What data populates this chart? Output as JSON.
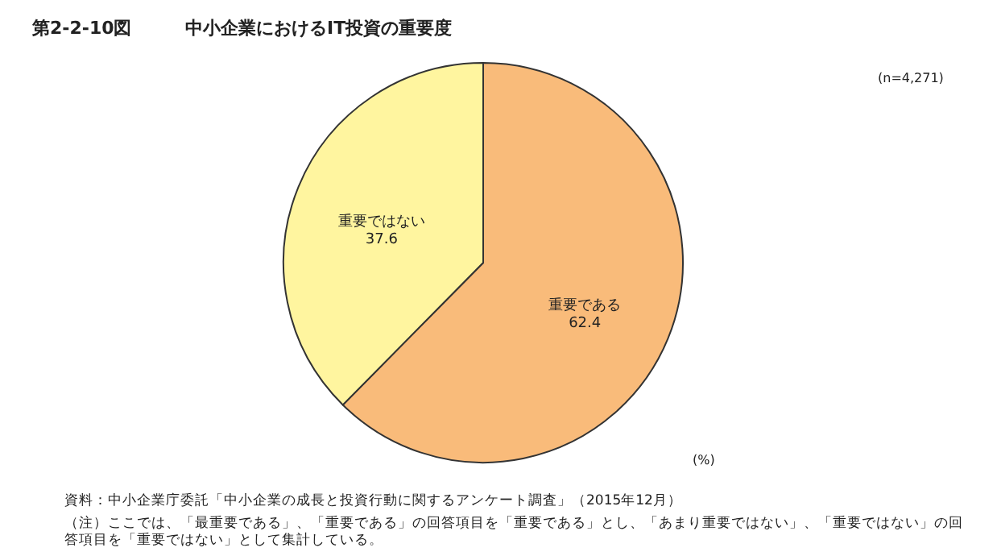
{
  "chart_data": {
    "type": "pie",
    "title": "中小企業におけるIT投資の重要度",
    "subtitle": "第2-2-10図",
    "categories": [
      "重要である",
      "重要ではない"
    ],
    "values": [
      62.4,
      37.6
    ],
    "colors": [
      "#f9bb7a",
      "#fff59f"
    ],
    "data_labels": true,
    "legend": false,
    "annotations": [
      "(n=4,271)",
      "(%)",
      "資料：中小企業庁委託「中小企業の成長と投資行動に関するアンケート調査」（2015年12月）",
      "（注）ここでは、「最重要である」、「重要である」の回答項目を「重要である」とし、「あまり重要ではない」、「重要ではない」の回答項目を「重要ではない」として集計している。"
    ]
  }
}
